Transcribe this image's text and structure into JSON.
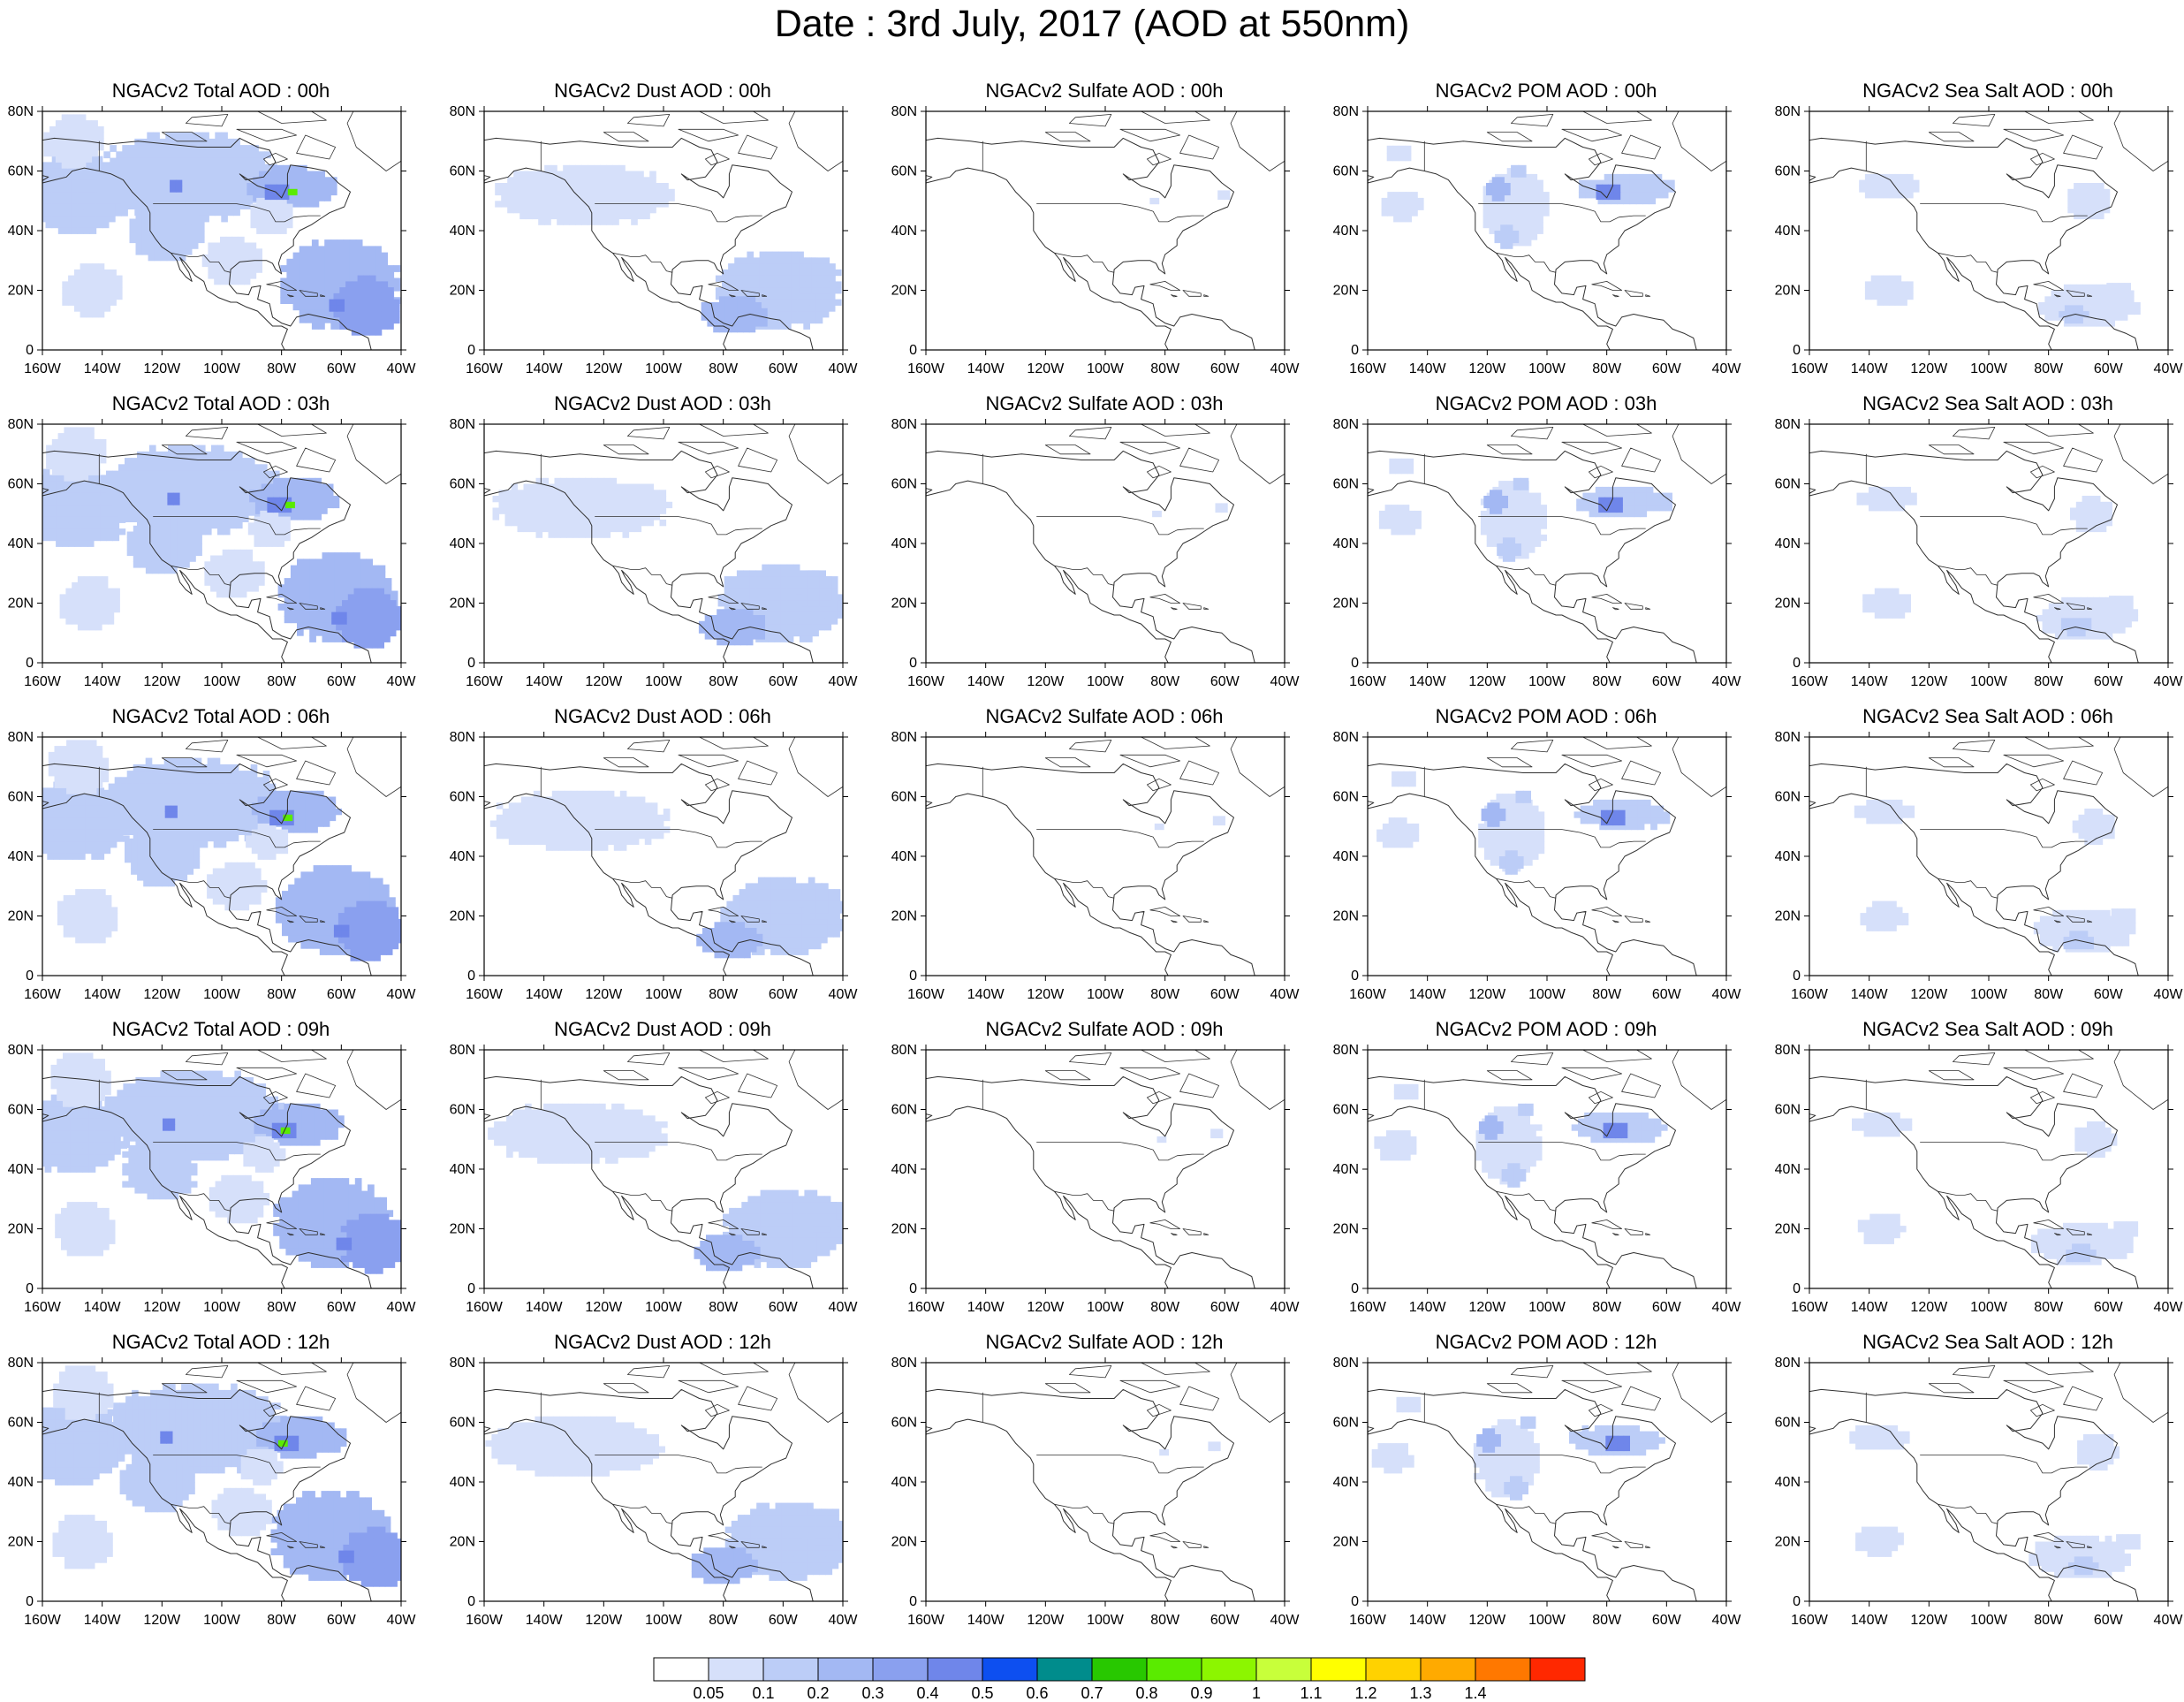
{
  "title": "Date : 3rd July, 2017 (AOD at 550nm)",
  "rows": [
    "00h",
    "03h",
    "06h",
    "09h",
    "12h"
  ],
  "columns": [
    {
      "key": "total",
      "prefix": "NGACv2 Total AOD"
    },
    {
      "key": "dust",
      "prefix": "NGACv2 Dust AOD"
    },
    {
      "key": "sulfate",
      "prefix": "NGACv2 Sulfate AOD"
    },
    {
      "key": "pom",
      "prefix": "NGACv2 POM AOD"
    },
    {
      "key": "seasalt",
      "prefix": "NGACv2 Sea Salt AOD"
    }
  ],
  "panel_titles": [
    [
      "NGACv2 Total AOD : 00h",
      "NGACv2 Dust AOD : 00h",
      "NGACv2 Sulfate AOD : 00h",
      "NGACv2 POM AOD : 00h",
      "NGACv2 Sea Salt AOD : 00h"
    ],
    [
      "NGACv2 Total AOD : 03h",
      "NGACv2 Dust AOD : 03h",
      "NGACv2 Sulfate AOD : 03h",
      "NGACv2 POM AOD : 03h",
      "NGACv2 Sea Salt AOD : 03h"
    ],
    [
      "NGACv2 Total AOD : 06h",
      "NGACv2 Dust AOD : 06h",
      "NGACv2 Sulfate AOD : 06h",
      "NGACv2 POM AOD : 06h",
      "NGACv2 Sea Salt AOD : 06h"
    ],
    [
      "NGACv2 Total AOD : 09h",
      "NGACv2 Dust AOD : 09h",
      "NGACv2 Sulfate AOD : 09h",
      "NGACv2 POM AOD : 09h",
      "NGACv2 Sea Salt  AOD : 09h"
    ],
    [
      "NGACv2 Total AOD  : 12h",
      "NGACv2 Dust AOD : 12h",
      "NGACv2 Sulfate AOD : 12h",
      "NGACv2 POM  AOD : 12h",
      "NGACv2 Sea Salt  AOD : 12h"
    ]
  ],
  "map": {
    "lon_range": [
      -160,
      -40
    ],
    "lat_range": [
      0,
      80
    ],
    "lon_ticks": [
      -160,
      -140,
      -120,
      -100,
      -80,
      -60,
      -40
    ],
    "lon_labels": [
      "160W",
      "140W",
      "120W",
      "100W",
      "80W",
      "60W",
      "40W"
    ],
    "lat_ticks": [
      0,
      20,
      40,
      60,
      80
    ],
    "lat_labels": [
      "0",
      "20N",
      "40N",
      "60N",
      "80N"
    ]
  },
  "colorbar": {
    "labels": [
      "0.05",
      "0.1",
      "0.2",
      "0.3",
      "0.4",
      "0.5",
      "0.6",
      "0.7",
      "0.8",
      "0.9",
      "1",
      "1.1",
      "1.2",
      "1.3",
      "1.4"
    ],
    "colors": [
      "#ffffff",
      "#d6e0fa",
      "#bccdf7",
      "#a3b8f3",
      "#8aa0ef",
      "#6f86ea",
      "#0d4ff0",
      "#008c8c",
      "#28c800",
      "#5aeb00",
      "#8cf600",
      "#c8ff3a",
      "#ffff00",
      "#ffd200",
      "#ffaa00",
      "#ff7800",
      "#ff2800"
    ]
  },
  "fields": {
    "total": [
      {
        "lon": -150,
        "lat": 52,
        "w": 38,
        "h": 26,
        "level": 2
      },
      {
        "lon": -110,
        "lat": 58,
        "w": 60,
        "h": 30,
        "level": 2
      },
      {
        "lon": -120,
        "lat": 40,
        "w": 25,
        "h": 20,
        "level": 2
      },
      {
        "lon": -75,
        "lat": 55,
        "w": 30,
        "h": 14,
        "level": 3
      },
      {
        "lon": -62,
        "lat": 22,
        "w": 40,
        "h": 30,
        "level": 3
      },
      {
        "lon": -50,
        "lat": 15,
        "w": 22,
        "h": 20,
        "level": 4
      },
      {
        "lon": -145,
        "lat": 20,
        "w": 20,
        "h": 18,
        "level": 1
      },
      {
        "lon": -95,
        "lat": 30,
        "w": 20,
        "h": 16,
        "level": 1
      },
      {
        "lon": -85,
        "lat": 45,
        "w": 14,
        "h": 12,
        "level": 1
      },
      {
        "lon": -148,
        "lat": 70,
        "w": 20,
        "h": 18,
        "level": 1
      },
      {
        "lon": -117,
        "lat": 55,
        "w": 4,
        "h": 4,
        "level": 5
      },
      {
        "lon": -80,
        "lat": 53,
        "w": 8,
        "h": 5,
        "level": 5
      },
      {
        "lon": -78,
        "lat": 53,
        "w": 3,
        "h": 2,
        "level": 9
      },
      {
        "lon": -60,
        "lat": 15,
        "w": 5,
        "h": 4,
        "level": 5
      }
    ],
    "dust": [
      {
        "lon": -128,
        "lat": 52,
        "w": 60,
        "h": 20,
        "level": 1
      },
      {
        "lon": -60,
        "lat": 20,
        "w": 42,
        "h": 26,
        "level": 2
      },
      {
        "lon": -78,
        "lat": 12,
        "w": 22,
        "h": 12,
        "level": 3
      },
      {
        "lon": -48,
        "lat": 25,
        "w": 14,
        "h": 12,
        "level": 2
      }
    ],
    "sulfate": [
      {
        "lon": -62,
        "lat": 52,
        "w": 4,
        "h": 3,
        "level": 1
      },
      {
        "lon": -82,
        "lat": 50,
        "w": 3,
        "h": 2,
        "level": 1
      }
    ],
    "pom": [
      {
        "lon": -150,
        "lat": 48,
        "w": 14,
        "h": 10,
        "level": 1
      },
      {
        "lon": -148,
        "lat": 66,
        "w": 8,
        "h": 5,
        "level": 1
      },
      {
        "lon": -112,
        "lat": 48,
        "w": 22,
        "h": 26,
        "level": 1
      },
      {
        "lon": -112,
        "lat": 38,
        "w": 8,
        "h": 8,
        "level": 2
      },
      {
        "lon": -118,
        "lat": 54,
        "w": 8,
        "h": 8,
        "level": 3
      },
      {
        "lon": -108,
        "lat": 60,
        "w": 5,
        "h": 4,
        "level": 2
      },
      {
        "lon": -75,
        "lat": 54,
        "w": 32,
        "h": 10,
        "level": 2
      },
      {
        "lon": -78,
        "lat": 53,
        "w": 8,
        "h": 5,
        "level": 5
      }
    ],
    "seasalt": [
      {
        "lon": -135,
        "lat": 55,
        "w": 20,
        "h": 8,
        "level": 1
      },
      {
        "lon": -65,
        "lat": 50,
        "w": 14,
        "h": 12,
        "level": 1
      },
      {
        "lon": -68,
        "lat": 15,
        "w": 34,
        "h": 14,
        "level": 1
      },
      {
        "lon": -55,
        "lat": 20,
        "w": 8,
        "h": 5,
        "level": 1
      },
      {
        "lon": -135,
        "lat": 20,
        "w": 16,
        "h": 10,
        "level": 1
      },
      {
        "lon": -70,
        "lat": 12,
        "w": 10,
        "h": 6,
        "level": 2
      }
    ]
  }
}
